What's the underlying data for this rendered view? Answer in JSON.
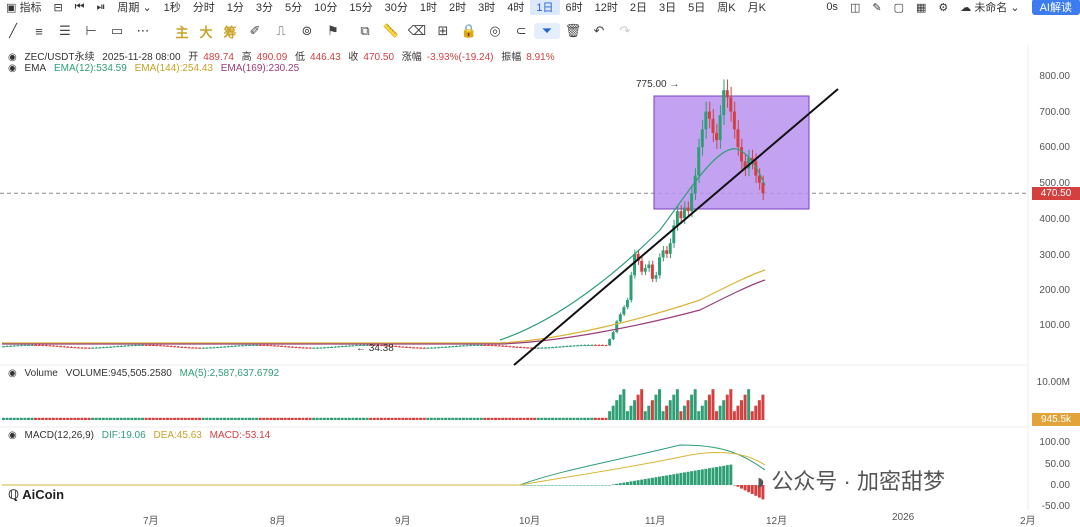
{
  "toolbar": {
    "indicators_label": "指标",
    "period_label": "周期",
    "intervals": [
      "1秒",
      "分时",
      "1分",
      "3分",
      "5分",
      "10分",
      "15分",
      "30分",
      "1时",
      "2时",
      "3时",
      "4时",
      "1日",
      "6时",
      "12时",
      "2日",
      "3日",
      "5日",
      "周K",
      "月K"
    ],
    "active_interval": "1日",
    "right_timer": "0s",
    "layout_name": "未命名",
    "ai_button": "AI解读",
    "chart_type_buttons": [
      "主",
      "大",
      "筹"
    ]
  },
  "legend": {
    "symbol": "ZEC/USDT永续",
    "date": "2025-11-28 08:00",
    "open_label": "开",
    "open": "489.74",
    "high_label": "高",
    "high": "490.09",
    "low_label": "低",
    "low": "446.43",
    "close_label": "收",
    "close": "470.50",
    "change_label": "涨幅",
    "change": "-3.93%(-19.24)",
    "amplitude_label": "振幅",
    "amplitude": "8.91%",
    "ema_name": "EMA",
    "ema12": "EMA(12):534.59",
    "ema144": "EMA(144):254.43",
    "ema169": "EMA(169):230.25",
    "volume_name": "Volume",
    "volume_val": "VOLUME:945,505.2580",
    "volume_ma": "MA(5):2,587,637.6792",
    "macd_name": "MACD(12,26,9)",
    "macd_dif": "DIF:19.06",
    "macd_dea": "DEA:45.63",
    "macd_macd": "MACD:-53.14"
  },
  "price_axis": [
    "800.00",
    "700.00",
    "600.00",
    "500.00",
    "400.00",
    "300.00",
    "200.00",
    "100.00"
  ],
  "current_price": "470.50",
  "volume_axis": [
    "10.00M"
  ],
  "current_volume": "945.5k",
  "macd_axis": [
    "100.00",
    "50.00",
    "0.00",
    "-50.00"
  ],
  "annotations": {
    "high_mark": "775.00 →",
    "low_mark": "← 34.38"
  },
  "x_axis": [
    "7月",
    "8月",
    "9月",
    "10月",
    "11月",
    "12月",
    "2026",
    "2月"
  ],
  "logo": "AiCoin",
  "watermark": "公众号 · 加密甜梦",
  "colors": {
    "up": "#2e9e74",
    "down": "#d43f3f",
    "ema12": "#2e9e74",
    "ema144": "#d7b537",
    "ema169": "#9b3c7a",
    "box": "#b892ee",
    "accent": "#3d7cf0"
  }
}
